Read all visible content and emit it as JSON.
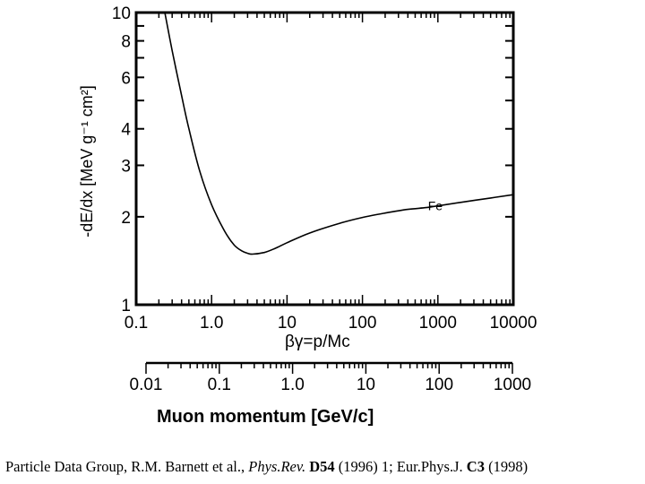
{
  "chart_data": {
    "type": "line",
    "ylabel": "-dE/dx [MeV g⁻¹ cm²]",
    "xlabel_top": "βγ=p/Mc",
    "xlabel_bottom": "Muon momentum [GeV/c]",
    "x_scale": "log",
    "y_scale": "log",
    "xlim": [
      0.1,
      10000
    ],
    "ylim": [
      1,
      10
    ],
    "x_ticks": [
      {
        "value": 0.1,
        "label": "0.1"
      },
      {
        "value": 1,
        "label": "1.0"
      },
      {
        "value": 10,
        "label": "10"
      },
      {
        "value": 100,
        "label": "100"
      },
      {
        "value": 1000,
        "label": "1000"
      },
      {
        "value": 10000,
        "label": "10000"
      }
    ],
    "y_ticks": [
      {
        "value": 1,
        "label": "1"
      },
      {
        "value": 2,
        "label": "2"
      },
      {
        "value": 3,
        "label": "3"
      },
      {
        "value": 4,
        "label": "4"
      },
      {
        "value": 6,
        "label": "6"
      },
      {
        "value": 8,
        "label": "8"
      },
      {
        "value": 10,
        "label": "10"
      }
    ],
    "momentum_axis": {
      "xlim": [
        0.01,
        1000
      ],
      "ticks": [
        {
          "value": 0.01,
          "label": "0.01"
        },
        {
          "value": 0.1,
          "label": "0.1"
        },
        {
          "value": 1,
          "label": "1.0"
        },
        {
          "value": 10,
          "label": "10"
        },
        {
          "value": 100,
          "label": "100"
        },
        {
          "value": 1000,
          "label": "1000"
        }
      ]
    },
    "series": [
      {
        "name": "Fe",
        "x": [
          0.24,
          0.3,
          0.4,
          0.5,
          0.7,
          1.0,
          1.5,
          2.0,
          2.5,
          3.0,
          3.5,
          5,
          7,
          10,
          20,
          50,
          100,
          200,
          400,
          700,
          1000,
          2000,
          5000,
          10000
        ],
        "values": [
          10,
          7.4,
          5.2,
          4.0,
          2.85,
          2.2,
          1.78,
          1.6,
          1.53,
          1.5,
          1.49,
          1.51,
          1.56,
          1.63,
          1.76,
          1.9,
          1.99,
          2.06,
          2.12,
          2.15,
          2.18,
          2.24,
          2.32,
          2.38
        ]
      }
    ],
    "annotations": [
      {
        "text": "Fe",
        "x": 700,
        "y": 2.18
      }
    ]
  },
  "caption": {
    "prefix": "Particle Data Group, R.M. Barnett et al., ",
    "journal1": "Phys.Rev.",
    "vol1": "D54",
    "mid": " (1996) 1; Eur.Phys.J. ",
    "vol2": "C3",
    "suffix": " (1998)"
  }
}
